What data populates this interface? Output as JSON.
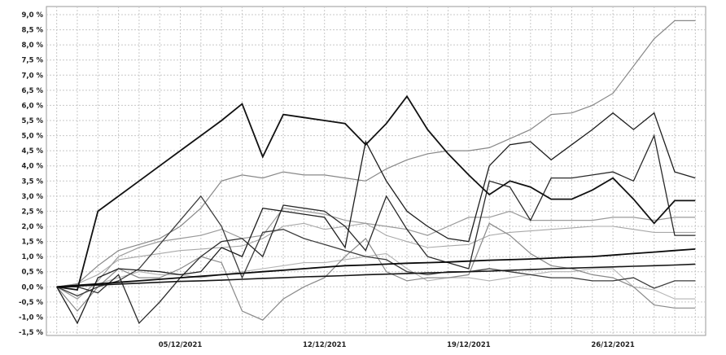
{
  "chart_data": {
    "type": "line",
    "title": "",
    "xlabel": "",
    "ylabel": "",
    "x_ticks": [
      "05/12/2021",
      "12/12/2021",
      "19/12/2021",
      "26/12/2021"
    ],
    "x_tick_index": [
      6,
      13,
      20,
      27
    ],
    "y_ticks": [
      "9,0 %",
      "8,5 %",
      "8,0 %",
      "7,5 %",
      "7,0 %",
      "6,5 %",
      "6,0 %",
      "5,5 %",
      "5,0 %",
      "4,5 %",
      "4,0 %",
      "3,5 %",
      "3,0 %",
      "2,5 %",
      "2,0 %",
      "1,5 %",
      "1,0 %",
      "0,5 %",
      "0,0 %",
      "-0,5 %",
      "-1,0 %",
      "-1,5 %"
    ],
    "ylim": [
      -1.5,
      9.0
    ],
    "xlim": [
      -0.5,
      31.5
    ],
    "grid": true,
    "legend": "none",
    "x": [
      0,
      1,
      2,
      3,
      4,
      5,
      6,
      7,
      8,
      9,
      10,
      11,
      12,
      13,
      14,
      15,
      16,
      17,
      18,
      19,
      20,
      21,
      22,
      23,
      24,
      25,
      26,
      27,
      28,
      29,
      30,
      31
    ],
    "series": [
      {
        "color": "#111111",
        "width": 1.8,
        "values": [
          0.0,
          -0.1,
          2.5,
          3.0,
          3.5,
          4.0,
          4.5,
          5.0,
          5.5,
          6.05,
          4.3,
          5.7,
          5.6,
          5.5,
          5.4,
          4.7,
          5.4,
          6.3,
          5.2,
          4.4,
          3.7,
          3.05,
          3.5,
          3.3,
          2.9,
          2.9,
          3.2,
          3.6,
          2.9,
          2.1,
          2.85,
          2.85
        ]
      },
      {
        "color": "#1e1e1e",
        "width": 1.3,
        "values": [
          0.0,
          -1.2,
          0.3,
          0.6,
          0.55,
          0.5,
          0.4,
          0.5,
          1.3,
          1.0,
          2.6,
          2.5,
          2.4,
          2.3,
          1.3,
          4.8,
          3.5,
          2.5,
          2.0,
          1.6,
          1.5,
          4.0,
          4.7,
          4.8,
          4.2,
          4.7,
          5.2,
          5.75,
          5.2,
          5.75,
          3.8,
          3.6
        ]
      },
      {
        "color": "#2a2a2a",
        "width": 1.3,
        "values": [
          0.0,
          0.0,
          -0.2,
          0.4,
          -1.2,
          -0.5,
          0.3,
          1.0,
          1.5,
          1.6,
          1.0,
          2.7,
          2.6,
          2.5,
          2.0,
          1.2,
          3.0,
          1.9,
          1.0,
          0.8,
          0.6,
          3.5,
          3.3,
          2.2,
          3.6,
          3.6,
          3.7,
          3.8,
          3.5,
          5.0,
          1.7,
          1.7
        ]
      },
      {
        "color": "#3c3c3c",
        "width": 1.3,
        "values": [
          0.0,
          -0.3,
          0.0,
          0.2,
          0.6,
          1.4,
          2.2,
          3.0,
          2.0,
          0.3,
          1.8,
          1.9,
          1.6,
          1.4,
          1.2,
          1.0,
          0.9,
          0.5,
          0.4,
          0.5,
          0.5,
          0.6,
          0.5,
          0.4,
          0.3,
          0.3,
          0.2,
          0.2,
          0.3,
          -0.05,
          0.2,
          0.2
        ]
      },
      {
        "color": "#888888",
        "width": 1.2,
        "values": [
          0.0,
          0.1,
          0.7,
          1.2,
          1.4,
          1.6,
          2.0,
          2.6,
          3.5,
          3.7,
          3.6,
          3.8,
          3.7,
          3.7,
          3.6,
          3.5,
          3.9,
          4.2,
          4.4,
          4.5,
          4.5,
          4.6,
          4.9,
          5.2,
          5.7,
          5.75,
          6.0,
          6.4,
          7.3,
          8.2,
          8.8,
          8.8
        ]
      },
      {
        "color": "#8a8a8a",
        "width": 1.2,
        "values": [
          0.0,
          -0.8,
          0.0,
          0.6,
          0.3,
          0.3,
          0.6,
          1.0,
          0.8,
          -0.8,
          -1.1,
          -0.4,
          0.0,
          0.3,
          1.0,
          1.6,
          0.5,
          0.2,
          0.3,
          0.3,
          0.4,
          2.1,
          1.7,
          1.1,
          0.7,
          0.6,
          0.4,
          0.3,
          0.0,
          -0.6,
          -0.7,
          -0.7
        ]
      },
      {
        "color": "#9a9a9a",
        "width": 1.2,
        "values": [
          0.0,
          -0.4,
          0.2,
          1.0,
          1.3,
          1.5,
          1.6,
          1.7,
          1.9,
          1.6,
          1.7,
          2.6,
          2.5,
          2.4,
          2.2,
          2.1,
          2.0,
          1.9,
          1.7,
          2.0,
          2.3,
          2.3,
          2.5,
          2.2,
          2.2,
          2.2,
          2.2,
          2.3,
          2.3,
          2.2,
          2.3,
          2.3
        ]
      },
      {
        "color": "#a8a8a8",
        "width": 1.1,
        "values": [
          0.0,
          0.1,
          0.4,
          0.9,
          1.0,
          1.1,
          1.2,
          1.25,
          1.3,
          1.35,
          1.6,
          2.0,
          2.1,
          1.9,
          2.0,
          2.1,
          1.7,
          1.5,
          1.3,
          1.35,
          1.4,
          1.7,
          1.8,
          1.85,
          1.9,
          1.95,
          2.0,
          2.0,
          1.9,
          1.8,
          1.8,
          1.8
        ]
      },
      {
        "color": "#b4b4b4",
        "width": 1.1,
        "values": [
          0.0,
          0.0,
          0.1,
          0.3,
          0.5,
          0.4,
          0.4,
          0.3,
          0.4,
          0.5,
          0.6,
          0.7,
          0.8,
          0.8,
          0.9,
          1.0,
          1.1,
          0.6,
          0.2,
          0.3,
          0.3,
          0.2,
          0.3,
          0.4,
          0.5,
          0.5,
          0.6,
          0.6,
          0.0,
          -0.1,
          -0.4,
          -0.4
        ]
      },
      {
        "color": "#0a0a0a",
        "width": 1.8,
        "values": [
          0.0,
          0.05,
          0.1,
          0.15,
          0.2,
          0.25,
          0.3,
          0.35,
          0.4,
          0.45,
          0.5,
          0.55,
          0.6,
          0.65,
          0.7,
          0.72,
          0.75,
          0.78,
          0.8,
          0.82,
          0.85,
          0.88,
          0.9,
          0.92,
          0.95,
          0.98,
          1.0,
          1.05,
          1.1,
          1.15,
          1.2,
          1.25
        ]
      },
      {
        "color": "#161616",
        "width": 1.6,
        "values": [
          0.0,
          0.03,
          0.06,
          0.09,
          0.12,
          0.15,
          0.18,
          0.2,
          0.22,
          0.25,
          0.28,
          0.3,
          0.33,
          0.35,
          0.37,
          0.4,
          0.42,
          0.44,
          0.46,
          0.48,
          0.5,
          0.52,
          0.55,
          0.57,
          0.6,
          0.62,
          0.64,
          0.66,
          0.68,
          0.7,
          0.72,
          0.75
        ]
      }
    ]
  }
}
